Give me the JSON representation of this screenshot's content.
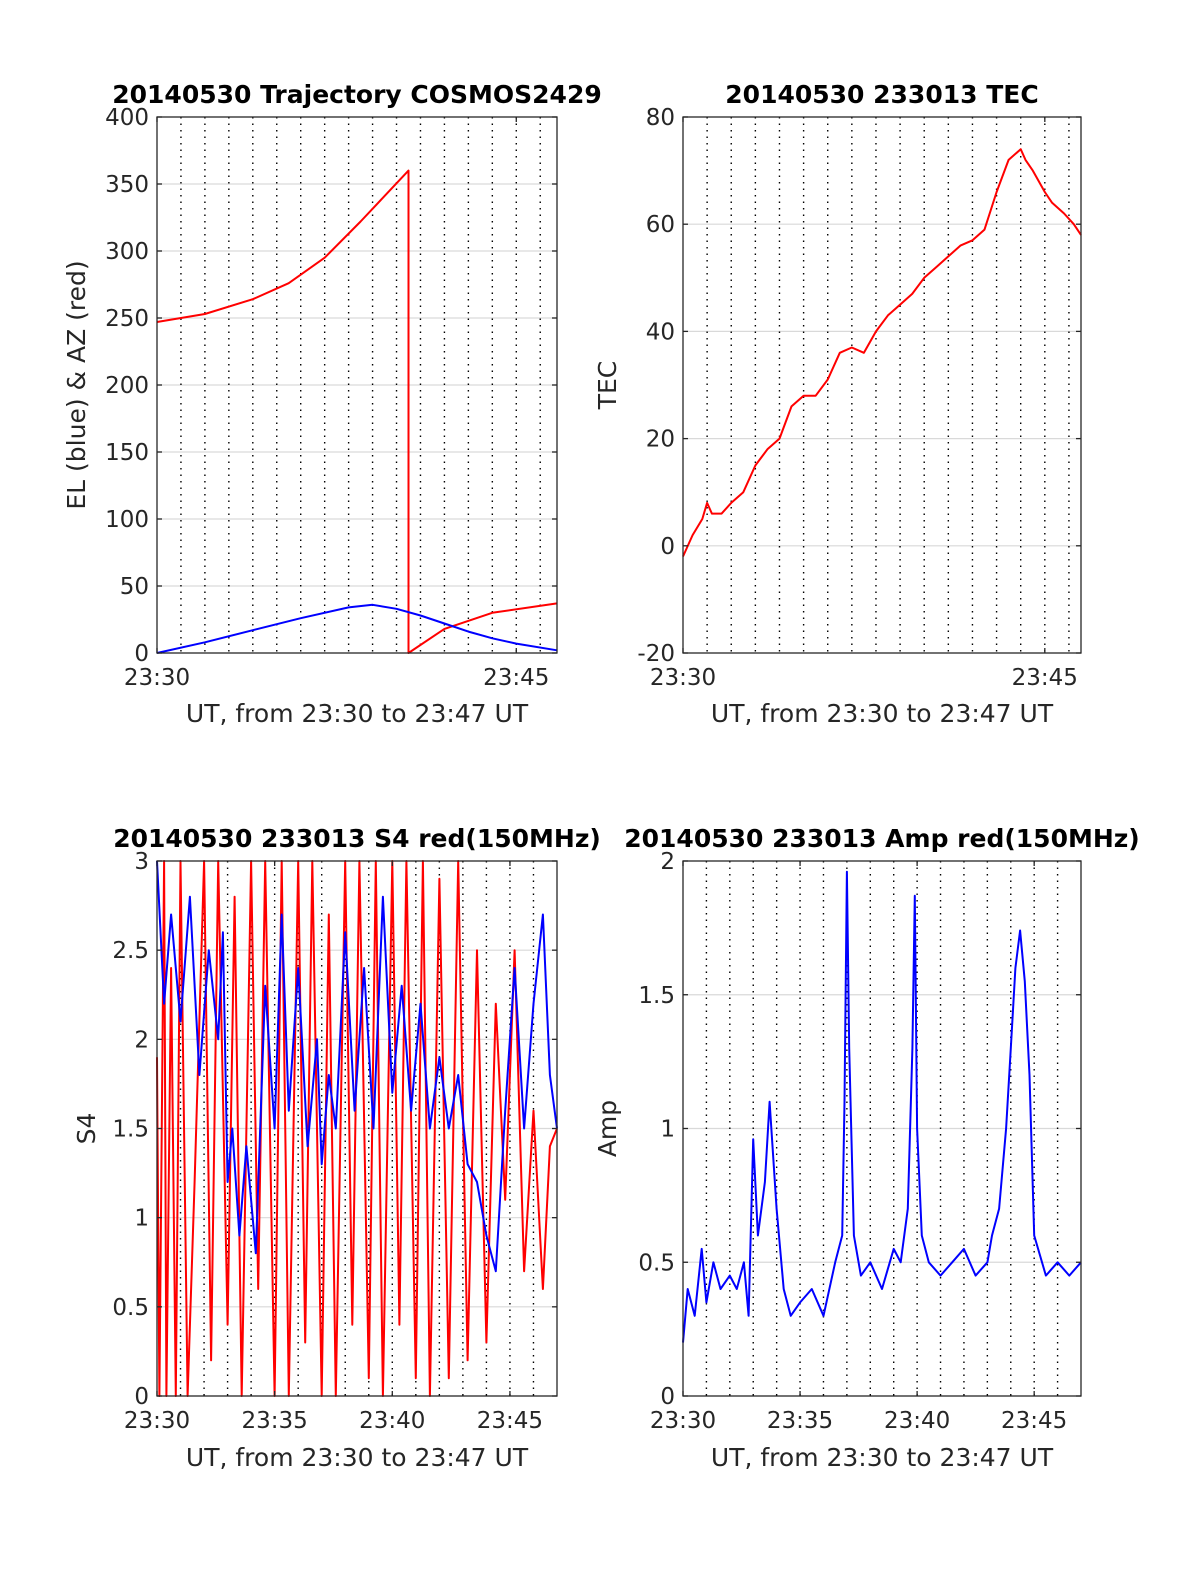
{
  "colors": {
    "red": "#ff0000",
    "blue": "#0000ff",
    "grid": "#d9d9d9",
    "axis": "#262626"
  },
  "chart_data": [
    {
      "type": "line",
      "title": "20140530 Trajectory COSMOS2429",
      "xlabel": "UT, from 23:30 to 23:47 UT",
      "ylabel": "EL (blue) & AZ (red)",
      "x_unit": "minutes after 23:30 UT",
      "xlim": [
        0,
        16.7
      ],
      "ylim": [
        0,
        400
      ],
      "xtick_labels": [
        "23:30",
        "23:45"
      ],
      "yticks": [
        0,
        50,
        100,
        150,
        200,
        250,
        300,
        350,
        400
      ],
      "grid": true,
      "series": [
        {
          "color": "red",
          "x": [
            0,
            2,
            4,
            5.5,
            7,
            8.5,
            9.5,
            10.5,
            10.5,
            12,
            14,
            16.7
          ],
          "y": [
            247,
            253,
            264,
            276,
            295,
            322,
            341,
            360,
            0,
            18,
            30,
            37
          ]
        },
        {
          "color": "blue",
          "x": [
            0,
            2,
            4,
            6,
            8,
            9,
            10,
            11,
            12,
            13,
            14,
            15,
            16.7
          ],
          "y": [
            0,
            8,
            17,
            26,
            34,
            36,
            33,
            28,
            22,
            16,
            11,
            7,
            2
          ]
        }
      ]
    },
    {
      "type": "line",
      "title": "20140530 233013 TEC",
      "xlabel": "UT, from 23:30 to 23:47 UT",
      "ylabel": "TEC",
      "x_unit": "minutes after 23:30 UT",
      "xlim": [
        0,
        16.5
      ],
      "ylim": [
        -20,
        80
      ],
      "xtick_labels": [
        "23:30",
        "23:45"
      ],
      "yticks": [
        -20,
        0,
        20,
        40,
        60,
        80
      ],
      "grid": true,
      "series": [
        {
          "color": "red",
          "x": [
            0,
            0.4,
            0.8,
            1,
            1.2,
            1.6,
            2,
            2.5,
            3,
            3.5,
            4,
            4.5,
            5,
            5.5,
            6,
            6.5,
            7,
            7.5,
            8,
            8.5,
            9,
            9.5,
            10,
            10.5,
            11,
            11.5,
            12,
            12.5,
            13,
            13.5,
            14,
            14.2,
            14.5,
            15,
            15.3,
            15.8,
            16.2,
            16.5
          ],
          "y": [
            -2,
            2,
            5,
            8,
            6,
            6,
            8,
            10,
            15,
            18,
            20,
            26,
            28,
            28,
            31,
            36,
            37,
            36,
            40,
            43,
            45,
            47,
            50,
            52,
            54,
            56,
            57,
            59,
            66,
            72,
            74,
            72,
            70,
            66,
            64,
            62,
            60,
            58
          ]
        }
      ]
    },
    {
      "type": "line",
      "title": "20140530 233013 S4 red(150MHz)",
      "xlabel": "UT, from 23:30 to 23:47 UT",
      "ylabel": "S4",
      "x_unit": "minutes after 23:30 UT",
      "xlim": [
        0,
        17
      ],
      "ylim": [
        0,
        3
      ],
      "xticks": [
        0,
        5,
        10,
        15
      ],
      "xtick_labels": [
        "23:30",
        "23:35",
        "23:40",
        "23:45"
      ],
      "yticks": [
        0,
        0.5,
        1,
        1.5,
        2,
        2.5,
        3
      ],
      "grid": true,
      "series": [
        {
          "color": "red",
          "x": [
            0,
            0.1,
            0.3,
            0.4,
            0.6,
            0.8,
            1,
            1.3,
            1.6,
            2,
            2.3,
            2.6,
            3,
            3.3,
            3.6,
            4,
            4.3,
            4.6,
            5,
            5.3,
            5.6,
            6,
            6.3,
            6.6,
            7,
            7.3,
            7.6,
            8,
            8.3,
            8.6,
            9,
            9.3,
            9.6,
            10,
            10.3,
            10.6,
            11,
            11.3,
            11.6,
            12,
            12.4,
            12.8,
            13.2,
            13.6,
            14,
            14.4,
            14.8,
            15.2,
            15.6,
            16,
            16.4,
            16.7,
            17
          ],
          "y": [
            1.9,
            0,
            3,
            0,
            2.4,
            0,
            3,
            0,
            1.2,
            3,
            0.2,
            3,
            0.4,
            2.8,
            0,
            3,
            0.6,
            3,
            0,
            3,
            0,
            3,
            0.3,
            3,
            0,
            2.7,
            0,
            3,
            0.4,
            3,
            0.1,
            3,
            0,
            3,
            0.4,
            3,
            0.1,
            3,
            0,
            2.9,
            0.1,
            3,
            0.2,
            2.5,
            0.3,
            2.2,
            1.1,
            2.5,
            0.7,
            1.6,
            0.6,
            1.4,
            1.5
          ]
        },
        {
          "color": "blue",
          "x": [
            0,
            0.3,
            0.6,
            1,
            1.4,
            1.8,
            2.2,
            2.6,
            2.8,
            3,
            3.2,
            3.5,
            3.8,
            4.2,
            4.6,
            5,
            5.3,
            5.6,
            6,
            6.4,
            6.8,
            7,
            7.3,
            7.6,
            8,
            8.4,
            8.8,
            9.2,
            9.6,
            10,
            10.4,
            10.8,
            11.2,
            11.6,
            12,
            12.4,
            12.8,
            13.2,
            13.6,
            14,
            14.4,
            14.8,
            15.2,
            15.6,
            16,
            16.4,
            16.7,
            17
          ],
          "y": [
            3,
            2.2,
            2.7,
            2.1,
            2.8,
            1.8,
            2.5,
            2.0,
            2.6,
            1.2,
            1.5,
            0.9,
            1.4,
            0.8,
            2.3,
            1.5,
            2.7,
            1.6,
            2.4,
            1.4,
            2.0,
            1.3,
            1.8,
            1.5,
            2.6,
            1.6,
            2.4,
            1.5,
            2.8,
            1.7,
            2.3,
            1.6,
            2.2,
            1.5,
            1.9,
            1.5,
            1.8,
            1.3,
            1.2,
            0.9,
            0.7,
            1.6,
            2.4,
            1.5,
            2.2,
            2.7,
            1.8,
            1.5
          ]
        }
      ]
    },
    {
      "type": "line",
      "title": "20140530 233013 Amp red(150MHz)",
      "xlabel": "UT, from 23:30 to 23:47 UT",
      "ylabel": "Amp",
      "x_unit": "minutes after 23:30 UT",
      "xlim": [
        0,
        17
      ],
      "ylim": [
        0,
        2
      ],
      "xticks": [
        0,
        5,
        10,
        15
      ],
      "xtick_labels": [
        "23:30",
        "23:35",
        "23:40",
        "23:45"
      ],
      "yticks": [
        0,
        0.5,
        1,
        1.5,
        2
      ],
      "grid": true,
      "series": [
        {
          "color": "blue",
          "x": [
            0,
            0.2,
            0.5,
            0.8,
            1,
            1.3,
            1.6,
            2,
            2.3,
            2.6,
            2.8,
            3,
            3.2,
            3.5,
            3.7,
            4,
            4.3,
            4.6,
            5,
            5.5,
            6,
            6.5,
            6.8,
            6.9,
            7,
            7.1,
            7.3,
            7.6,
            8,
            8.5,
            9,
            9.3,
            9.6,
            9.8,
            9.9,
            10,
            10.2,
            10.5,
            11,
            11.5,
            12,
            12.5,
            13,
            13.2,
            13.5,
            13.8,
            14,
            14.2,
            14.4,
            14.6,
            14.8,
            15,
            15.5,
            16,
            16.5,
            17
          ],
          "y": [
            0.2,
            0.4,
            0.3,
            0.55,
            0.35,
            0.5,
            0.4,
            0.45,
            0.4,
            0.5,
            0.3,
            0.96,
            0.6,
            0.8,
            1.1,
            0.7,
            0.4,
            0.3,
            0.35,
            0.4,
            0.3,
            0.5,
            0.6,
            1.1,
            1.96,
            1.3,
            0.6,
            0.45,
            0.5,
            0.4,
            0.55,
            0.5,
            0.7,
            1.3,
            1.87,
            1.0,
            0.6,
            0.5,
            0.45,
            0.5,
            0.55,
            0.45,
            0.5,
            0.6,
            0.7,
            1.0,
            1.3,
            1.6,
            1.74,
            1.55,
            1.2,
            0.6,
            0.45,
            0.5,
            0.45,
            0.5
          ]
        }
      ]
    }
  ]
}
